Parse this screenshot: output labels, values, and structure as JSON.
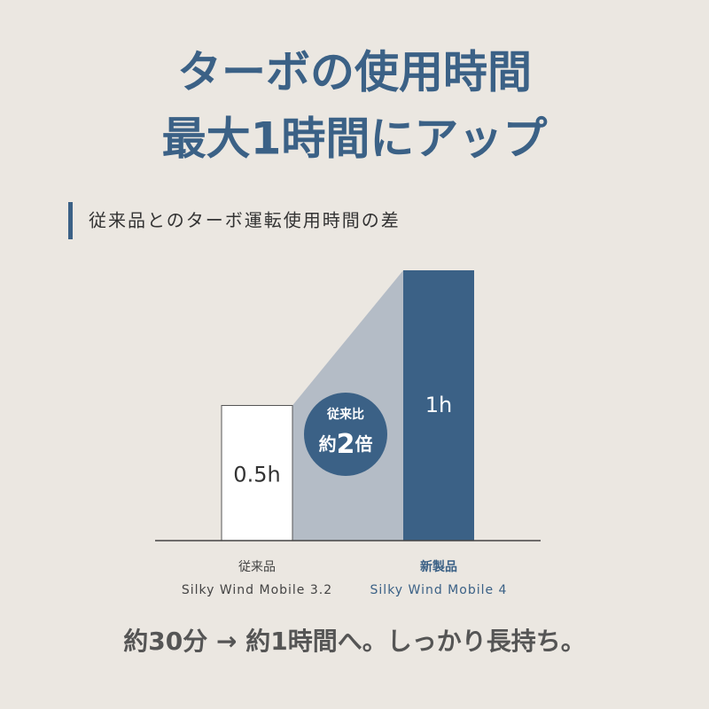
{
  "chart_data": {
    "type": "bar",
    "title": [
      "ターボの使用時間",
      "最大1時間にアップ"
    ],
    "subtitle": "従来品とのターボ運転使用時間の差",
    "categories": [
      "従来品",
      "新製品"
    ],
    "category_sublabels": [
      "Silky Wind Mobile 3.2",
      "Silky Wind Mobile 4"
    ],
    "values": [
      0.5,
      1
    ],
    "value_labels": [
      "0.5h",
      "1h"
    ],
    "colors": [
      "#ffffff",
      "#3b6186"
    ],
    "badge": {
      "top": "従来比",
      "main": [
        "約",
        "2",
        "倍"
      ]
    },
    "footer": "約30分 → 約1時間へ。しっかり長持ち。"
  }
}
